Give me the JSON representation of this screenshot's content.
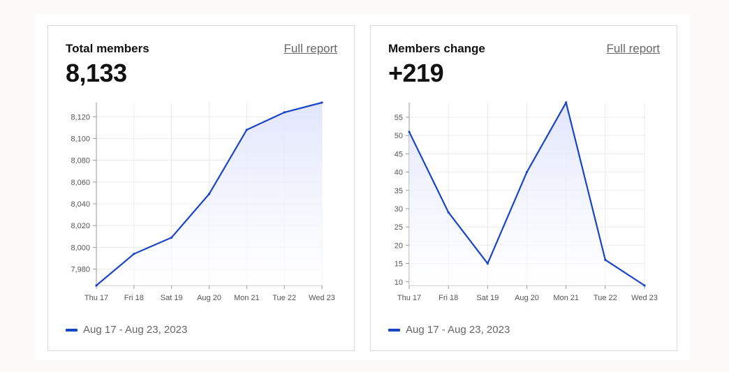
{
  "cards": [
    {
      "title": "Total members",
      "link_label": "Full report",
      "value": "8,133",
      "legend": "Aug 17 - Aug 23, 2023"
    },
    {
      "title": "Members change",
      "link_label": "Full report",
      "value": "+219",
      "legend": "Aug 17 - Aug 23, 2023"
    }
  ],
  "colors": {
    "line": "#1a44c6",
    "fill_top": "#dfe4fb",
    "grid": "#ececec"
  },
  "chart_data": [
    {
      "type": "area",
      "title": "Total members",
      "categories": [
        "Thu 17",
        "Fri 18",
        "Sat 19",
        "Aug 20",
        "Mon 21",
        "Tue 22",
        "Wed 23"
      ],
      "series": [
        {
          "name": "Aug 17 - Aug 23, 2023",
          "values": [
            7965,
            7994,
            8009,
            8049,
            8108,
            8124,
            8133
          ]
        }
      ],
      "yticks": [
        7980,
        8000,
        8020,
        8040,
        8060,
        8080,
        8100,
        8120
      ],
      "ytick_labels": [
        "7,980",
        "8,000",
        "8,020",
        "8,040",
        "8,060",
        "8,080",
        "8,100",
        "8,120"
      ],
      "ylim": [
        7965,
        8133
      ],
      "grid": true,
      "legend_position": "bottom-left"
    },
    {
      "type": "area",
      "title": "Members change",
      "categories": [
        "Thu 17",
        "Fri 18",
        "Sat 19",
        "Aug 20",
        "Mon 21",
        "Tue 22",
        "Wed 23"
      ],
      "series": [
        {
          "name": "Aug 17 - Aug 23, 2023",
          "values": [
            51,
            29,
            15,
            40,
            59,
            16,
            9
          ]
        }
      ],
      "yticks": [
        10,
        15,
        20,
        25,
        30,
        35,
        40,
        45,
        50,
        55
      ],
      "ytick_labels": [
        "10",
        "15",
        "20",
        "25",
        "30",
        "35",
        "40",
        "45",
        "50",
        "55"
      ],
      "ylim": [
        9,
        59
      ],
      "grid": true,
      "legend_position": "bottom-left"
    }
  ]
}
